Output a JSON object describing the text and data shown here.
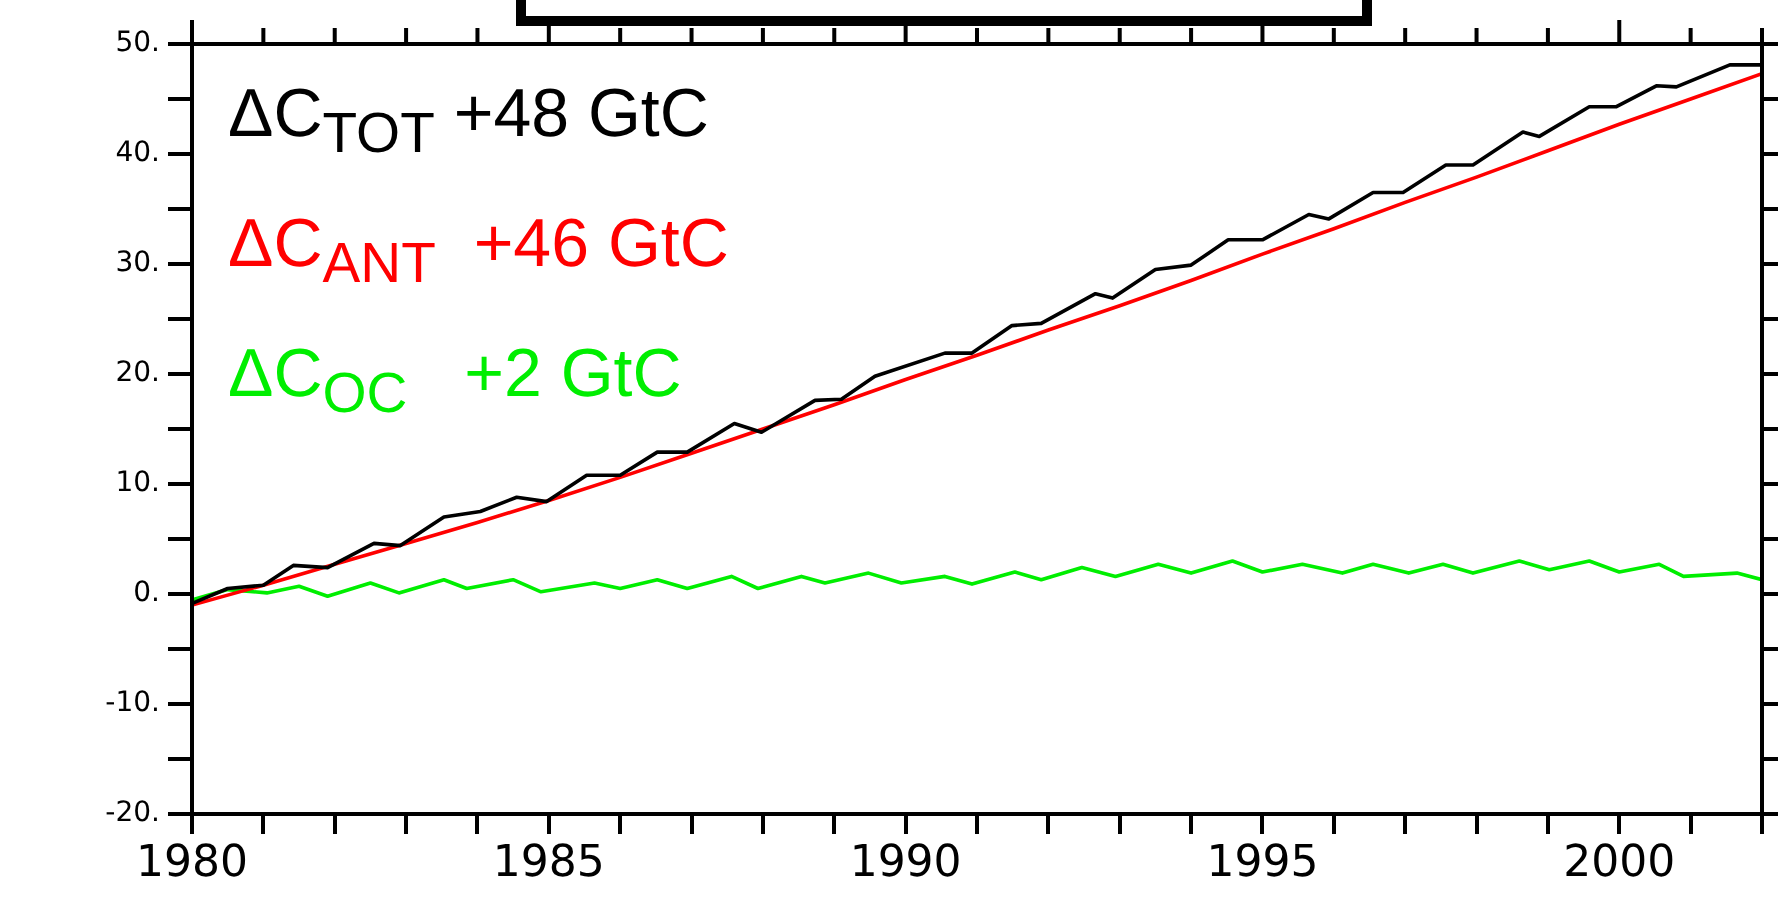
{
  "chart_data": {
    "type": "line",
    "legend": "top left",
    "marker": "none",
    "line_style": "solid",
    "grid": false,
    "xlim": [
      1980,
      2002
    ],
    "xticks": [
      1980,
      {
        "value": 1981,
        "label": null
      },
      {
        "value": 1982,
        "label": null
      },
      {
        "value": 1983,
        "label": null
      },
      {
        "value": 1984,
        "label": null
      },
      1985,
      {
        "value": 1986,
        "label": null
      },
      {
        "value": 1987,
        "label": null
      },
      {
        "value": 1988,
        "label": null
      },
      {
        "value": 1989,
        "label": null
      },
      1990,
      {
        "value": 1991,
        "label": null
      },
      {
        "value": 1992,
        "label": null
      },
      {
        "value": 1993,
        "label": null
      },
      {
        "value": 1994,
        "label": null
      },
      1995,
      {
        "value": 1996,
        "label": null
      },
      {
        "value": 1997,
        "label": null
      },
      {
        "value": 1998,
        "label": null
      },
      {
        "value": 1999,
        "label": null
      },
      2000,
      {
        "value": 2001,
        "label": null
      },
      {
        "value": 2002,
        "label": null
      }
    ],
    "ylim": [
      -20,
      50
    ],
    "yticks": [
      {
        "value": -20,
        "label": "-20."
      },
      {
        "value": -15,
        "label": null
      },
      {
        "value": -10,
        "label": "-10."
      },
      {
        "value": -5,
        "label": null
      },
      {
        "value": 0,
        "label": "0."
      },
      {
        "value": 5,
        "label": null
      },
      {
        "value": 10,
        "label": "10."
      },
      {
        "value": 15,
        "label": null
      },
      {
        "value": 20,
        "label": "20."
      },
      {
        "value": 25,
        "label": null
      },
      {
        "value": 30,
        "label": "30."
      },
      {
        "value": 35,
        "label": null
      },
      {
        "value": 40,
        "label": "40."
      },
      {
        "value": 45,
        "label": null
      },
      {
        "value": 50,
        "label": "50."
      }
    ],
    "series": [
      {
        "name": "ΔC$_{TOT}$ +48 GtC",
        "color": "#000000",
        "x": [
          1980.02,
          1980.5,
          1981.0,
          1981.42,
          1981.9,
          1982.55,
          1982.92,
          1983.53,
          1984.04,
          1984.55,
          1984.97,
          1985.53,
          1986.0,
          1986.52,
          1986.94,
          1987.6,
          1987.98,
          1988.73,
          1989.1,
          1989.57,
          1990.55,
          1990.93,
          1991.49,
          1991.9,
          1992.66,
          1992.9,
          1993.5,
          1994.0,
          1994.52,
          1995.0,
          1995.65,
          1995.93,
          1996.55,
          1996.97,
          1997.57,
          1997.95,
          1998.65,
          1998.88,
          1999.58,
          1999.96,
          2000.52,
          2000.8,
          2001.55,
          2002.0
        ],
        "values": [
          -0.8,
          0.5,
          0.8,
          2.6,
          2.4,
          4.6,
          4.4,
          7.0,
          7.5,
          8.8,
          8.4,
          10.8,
          10.8,
          12.9,
          12.9,
          15.5,
          14.7,
          17.6,
          17.7,
          19.8,
          21.9,
          21.9,
          24.4,
          24.6,
          27.3,
          26.9,
          29.5,
          29.9,
          32.2,
          32.2,
          34.5,
          34.1,
          36.5,
          36.5,
          39.0,
          39.0,
          42.0,
          41.6,
          44.3,
          44.3,
          46.2,
          46.1,
          48.1,
          48.1
        ]
      },
      {
        "name": "ΔC$_{ANT}$  +46 GtC",
        "color": "#ff0000",
        "x": [
          1980,
          1981,
          1982,
          1983,
          1984,
          1985,
          1986,
          1987,
          1988,
          1989,
          1990,
          1991,
          1992,
          1993,
          1994,
          1995,
          1996,
          1997,
          1998,
          1999,
          2000,
          2001,
          2002
        ],
        "values": [
          -1.0,
          0.8,
          2.7,
          4.6,
          6.5,
          8.5,
          10.6,
          12.8,
          15.0,
          17.2,
          19.5,
          21.7,
          24.0,
          26.2,
          28.5,
          30.9,
          33.2,
          35.6,
          37.9,
          40.3,
          42.7,
          45.0,
          47.3
        ]
      },
      {
        "name": "ΔC$_{OC}$   +2 GtC",
        "color": "#00ee00",
        "x": [
          1980.02,
          1980.5,
          1981.05,
          1981.5,
          1981.9,
          1982.5,
          1982.9,
          1983.53,
          1983.85,
          1984.5,
          1984.89,
          1985.64,
          1986.0,
          1986.52,
          1986.94,
          1987.56,
          1987.93,
          1988.54,
          1988.87,
          1989.48,
          1989.94,
          1990.55,
          1990.93,
          1991.53,
          1991.9,
          1992.47,
          1992.94,
          1993.54,
          1994.0,
          1994.58,
          1995.0,
          1995.56,
          1996.12,
          1996.55,
          1997.05,
          1997.53,
          1997.95,
          1998.6,
          1999.02,
          1999.58,
          2000.0,
          2000.56,
          2000.9,
          2001.65,
          2002.0
        ],
        "values": [
          -0.5,
          0.4,
          0.1,
          0.7,
          -0.2,
          1.0,
          0.1,
          1.3,
          0.5,
          1.3,
          0.2,
          1.0,
          0.5,
          1.3,
          0.5,
          1.6,
          0.5,
          1.6,
          1.0,
          1.9,
          1.0,
          1.6,
          0.9,
          2.0,
          1.3,
          2.4,
          1.6,
          2.7,
          1.9,
          3.0,
          2.0,
          2.7,
          1.9,
          2.7,
          1.9,
          2.7,
          1.9,
          3.0,
          2.2,
          3.0,
          2.0,
          2.7,
          1.6,
          1.9,
          1.3
        ]
      }
    ]
  }
}
